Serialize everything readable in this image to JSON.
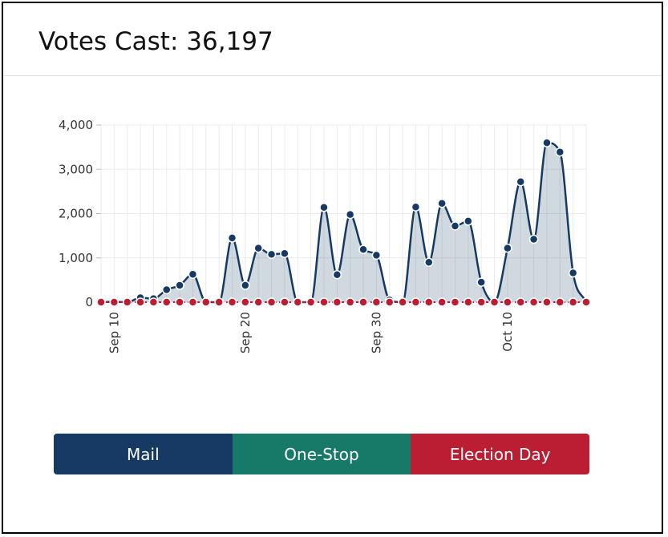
{
  "header": {
    "title": "Votes Cast: 36,197"
  },
  "buttons": [
    {
      "label": "Mail",
      "color": "#163a64"
    },
    {
      "label": "One-Stop",
      "color": "#177a68"
    },
    {
      "label": "Election Day",
      "color": "#bb1e32"
    }
  ],
  "chart_data": {
    "type": "area",
    "title": "",
    "xlabel": "",
    "ylabel": "",
    "ylim": [
      0,
      4000
    ],
    "yticks": [
      0,
      1000,
      2000,
      3000,
      4000
    ],
    "ytick_labels": [
      "0",
      "1,000",
      "2,000",
      "3,000",
      "4,000"
    ],
    "xticks": [
      "Sep 10",
      "Sep 20",
      "Sep 30",
      "Oct 10"
    ],
    "grid": true,
    "x": [
      "Sep 9",
      "Sep 10",
      "Sep 11",
      "Sep 12",
      "Sep 13",
      "Sep 14",
      "Sep 15",
      "Sep 16",
      "Sep 17",
      "Sep 18",
      "Sep 19",
      "Sep 20",
      "Sep 21",
      "Sep 22",
      "Sep 23",
      "Sep 24",
      "Sep 25",
      "Sep 26",
      "Sep 27",
      "Sep 28",
      "Sep 29",
      "Sep 30",
      "Oct 1",
      "Oct 2",
      "Oct 3",
      "Oct 4",
      "Oct 5",
      "Oct 6",
      "Oct 7",
      "Oct 8",
      "Oct 9",
      "Oct 10",
      "Oct 11",
      "Oct 12",
      "Oct 13",
      "Oct 14",
      "Oct 15",
      "Oct 16"
    ],
    "series": [
      {
        "name": "Mail",
        "color": "#163a64",
        "values": [
          0,
          10,
          0,
          100,
          80,
          280,
          380,
          630,
          0,
          0,
          1450,
          380,
          1220,
          1080,
          1100,
          0,
          0,
          2140,
          620,
          1980,
          1190,
          1060,
          50,
          0,
          2150,
          900,
          2230,
          1720,
          1830,
          450,
          0,
          1220,
          2720,
          1420,
          3600,
          3390,
          660,
          0
        ]
      },
      {
        "name": "Election Day",
        "color": "#bb1e32",
        "values": [
          0,
          0,
          0,
          0,
          0,
          0,
          0,
          0,
          0,
          0,
          0,
          0,
          0,
          0,
          0,
          0,
          0,
          0,
          0,
          0,
          0,
          0,
          0,
          0,
          0,
          0,
          0,
          0,
          0,
          0,
          0,
          0,
          0,
          0,
          0,
          0,
          0,
          0
        ]
      }
    ]
  }
}
